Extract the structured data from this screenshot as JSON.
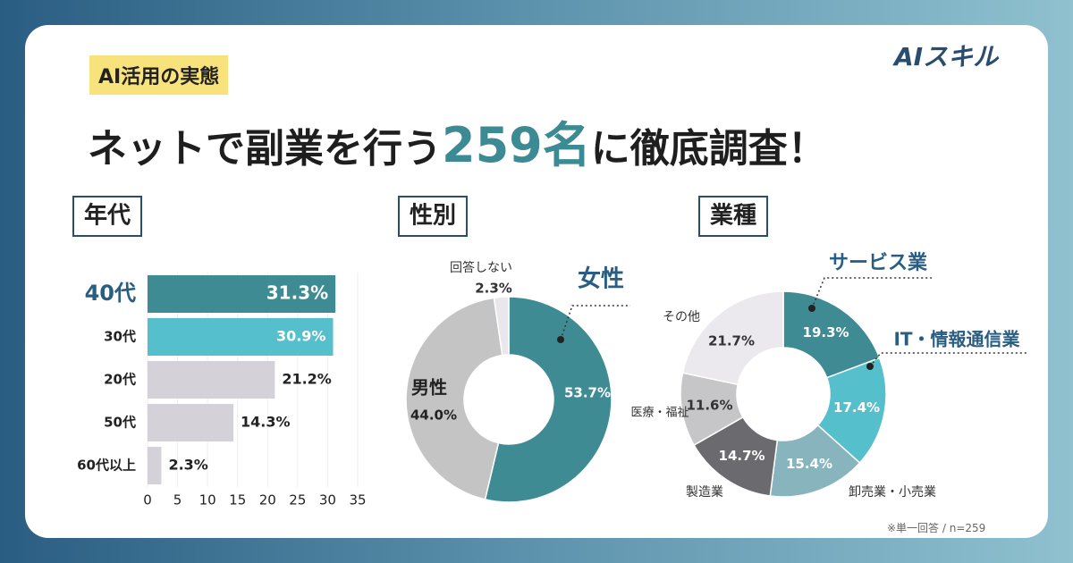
{
  "header": {
    "tag": "AI活用の実態",
    "title_before": "ネットで副業を行う",
    "title_number": "259名",
    "title_after": "に徹底調査！"
  },
  "brand": "AIスキル",
  "note": "※単一回答 / n=259",
  "chart_data": [
    {
      "type": "hbar",
      "title": "年代",
      "categories": [
        "40代",
        "30代",
        "20代",
        "50代",
        "60代以上"
      ],
      "values": [
        31.3,
        30.9,
        21.2,
        14.3,
        2.3
      ],
      "value_labels": [
        "31.3%",
        "30.9%",
        "21.2%",
        "14.3%",
        "2.3%"
      ],
      "colors": [
        "#3f8b93",
        "#56bfcc",
        "#d4d2d8",
        "#d4d2d8",
        "#d4d2d8"
      ],
      "xlim": [
        0,
        35
      ],
      "xticks": [
        0,
        5,
        10,
        15,
        20,
        25,
        30,
        35
      ],
      "grid": true
    },
    {
      "type": "donut",
      "title": "性別",
      "categories": [
        "女性",
        "男性",
        "回答しない"
      ],
      "values": [
        53.7,
        44.0,
        2.3
      ],
      "value_labels": [
        "53.7%",
        "44.0%",
        "2.3%"
      ],
      "colors": [
        "#3f8b93",
        "#c4c4c4",
        "#e9e6ec"
      ]
    },
    {
      "type": "donut",
      "title": "業種",
      "categories": [
        "サービス業",
        "IT・情報通信業",
        "卸売業・小売業",
        "製造業",
        "医療・福祉",
        "その他"
      ],
      "values": [
        19.3,
        17.4,
        15.4,
        14.7,
        11.6,
        21.7
      ],
      "value_labels": [
        "19.3%",
        "17.4%",
        "15.4%",
        "14.7%",
        "11.6%",
        "21.7%"
      ],
      "colors": [
        "#3f8b93",
        "#56bfcc",
        "#88b5bd",
        "#6b6a6e",
        "#c6c6c8",
        "#ebe8ee"
      ]
    }
  ]
}
